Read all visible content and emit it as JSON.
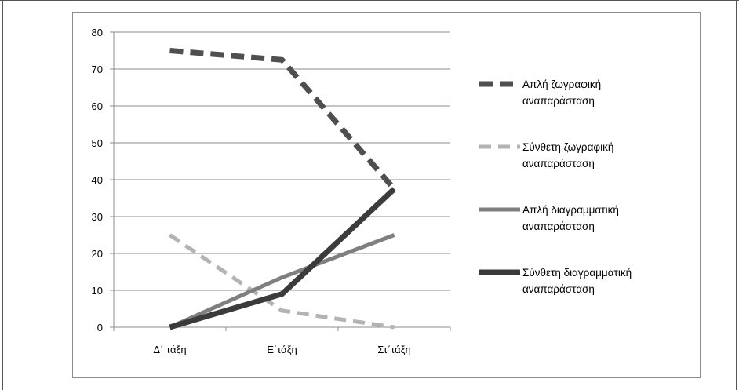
{
  "chart_data": {
    "type": "line",
    "categories": [
      "Δ΄ τάξη",
      "Ε΄τάξη",
      "Στ΄τάξη"
    ],
    "ylim": [
      0,
      80
    ],
    "yticks": [
      "0",
      "10",
      "20",
      "30",
      "40",
      "50",
      "60",
      "70",
      "80"
    ],
    "grid": true,
    "legend_position": "right",
    "series": [
      {
        "name_lines": [
          "Απλή ζωγραφική",
          "αναπαράσταση"
        ],
        "values": [
          75,
          72.5,
          37.5
        ],
        "color": "#4f4f4f",
        "style": "dashed"
      },
      {
        "name_lines": [
          "Σύνθετη ζωγραφική",
          "αναπαράσταση"
        ],
        "values": [
          25,
          4.5,
          0
        ],
        "color": "#b3b3b3",
        "style": "dashed"
      },
      {
        "name_lines": [
          "Απλή διαγραμματική",
          "αναπαράσταση"
        ],
        "values": [
          0,
          13.5,
          25
        ],
        "color": "#7f7f7f",
        "style": "solid"
      },
      {
        "name_lines": [
          "Σύνθετη διαγραμματική",
          "αναπαράσταση"
        ],
        "values": [
          0,
          9,
          37.5
        ],
        "color": "#3b3b3b",
        "style": "solid-thick"
      }
    ]
  }
}
